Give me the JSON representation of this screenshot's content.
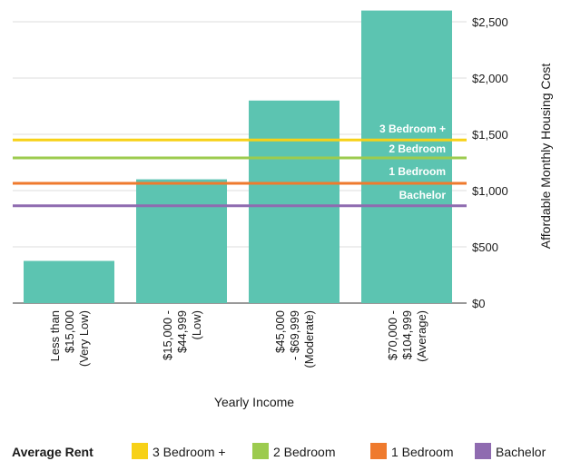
{
  "chart_data": {
    "type": "bar",
    "xlabel": "Yearly Income",
    "ylabel": "Affordable Monthly Housing Cost",
    "ylim": [
      0,
      2500
    ],
    "yticks": [
      0,
      500,
      1000,
      1500,
      2000,
      2500
    ],
    "ytick_labels": [
      "$0",
      "$500",
      "$1,000",
      "$1,500",
      "$2,000",
      "$2,500"
    ],
    "y_axis_position": "right",
    "grid": true,
    "categories": [
      [
        "Less than",
        "$15,000",
        "(Very Low)"
      ],
      [
        "$15,000 -",
        "$44,999",
        "(Low)"
      ],
      [
        "$45,000",
        "- $69,999",
        "(Moderate)"
      ],
      [
        "$70,000 -",
        "$104,999",
        "(Average)"
      ]
    ],
    "values": [
      375,
      1100,
      1800,
      2600
    ],
    "bar_color": "#5cc4b1",
    "reference_lines": [
      {
        "label": "3 Bedroom +",
        "value": 1450,
        "color": "#f7d117"
      },
      {
        "label": "2 Bedroom",
        "value": 1290,
        "color": "#9ccb4e"
      },
      {
        "label": "1 Bedroom",
        "value": 1065,
        "color": "#ef7a2d"
      },
      {
        "label": "Bachelor",
        "value": 865,
        "color": "#8f6bb0"
      }
    ],
    "legend": {
      "title": "Average Rent",
      "placement": "bottom",
      "items": [
        {
          "label": "3 Bedroom +",
          "color": "#f7d117"
        },
        {
          "label": "2 Bedroom",
          "color": "#9ccb4e"
        },
        {
          "label": "1 Bedroom",
          "color": "#ef7a2d"
        },
        {
          "label": "Bachelor",
          "color": "#8f6bb0"
        }
      ]
    }
  }
}
